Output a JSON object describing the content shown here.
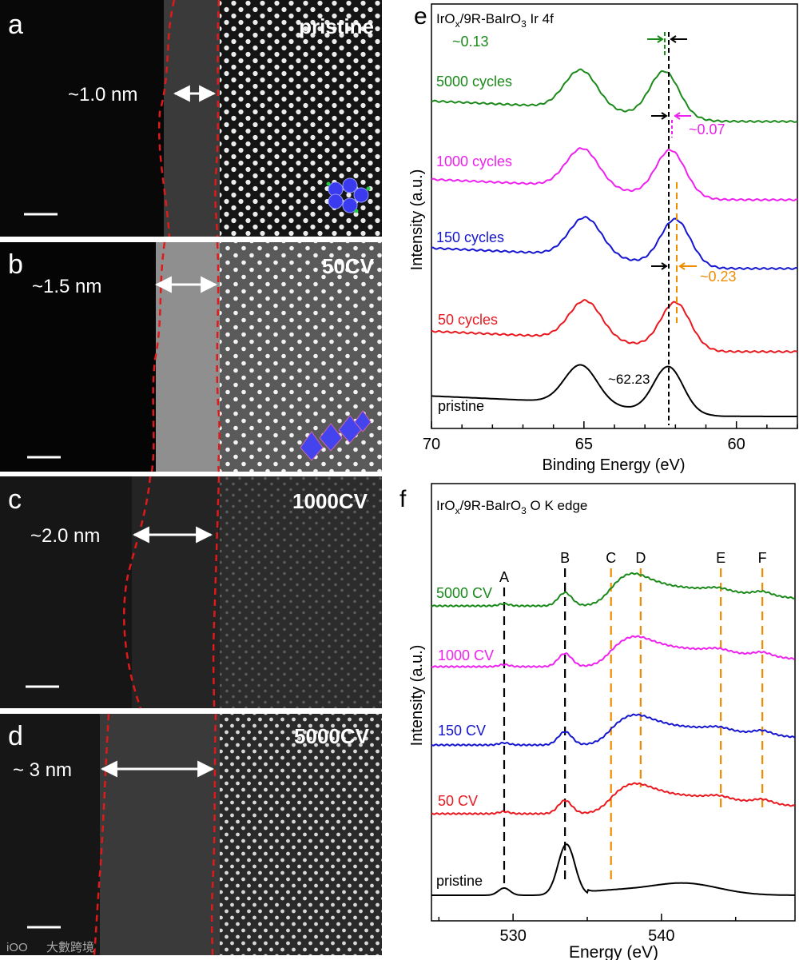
{
  "figure": {
    "watermark": "大數跨境",
    "watermark_logo": "iOO"
  },
  "tem_panels": [
    {
      "letter": "a",
      "condition": "pristine",
      "thickness": "~1.0 nm"
    },
    {
      "letter": "b",
      "condition": "50CV",
      "thickness": "~1.5 nm"
    },
    {
      "letter": "c",
      "condition": "1000CV",
      "thickness": "~2.0 nm"
    },
    {
      "letter": "d",
      "condition": "5000CV",
      "thickness": "~ 3 nm"
    }
  ],
  "chart_data": [
    {
      "panel": "e",
      "type": "line",
      "title_main": "IrO",
      "title_sub1": "x",
      "title_mid": "/9R-BaIrO",
      "title_sub2": "3",
      "title_end": " Ir 4f",
      "xlabel": "Binding Energy (eV)",
      "ylabel": "Intensity (a.u.)",
      "xlim": [
        70,
        58
      ],
      "xticks": [
        70,
        65,
        60
      ],
      "series": [
        {
          "name": "pristine",
          "color": "#000000",
          "peaks": [
            65.1,
            62.23
          ]
        },
        {
          "name": "50 cycles",
          "color": "#e8191f",
          "peaks": [
            64.95,
            62.0
          ]
        },
        {
          "name": "150 cycles",
          "color": "#1515d0",
          "peaks": [
            64.95,
            62.0
          ]
        },
        {
          "name": "1000 cycles",
          "color": "#ee22ee",
          "peaks": [
            65.05,
            62.16
          ]
        },
        {
          "name": "5000 cycles",
          "color": "#1a8a1a",
          "peaks": [
            65.1,
            62.36
          ]
        }
      ],
      "annotations": [
        {
          "text": "~62.23",
          "x": 62.23
        },
        {
          "text": "~0.23",
          "color": "#f08c00"
        },
        {
          "text": "~0.07",
          "color": "#ee22ee"
        },
        {
          "text": "~0.13",
          "color": "#1a8a1a"
        }
      ]
    },
    {
      "panel": "f",
      "type": "line",
      "title_main": "IrO",
      "title_sub1": "x",
      "title_mid": "/9R-BaIrO",
      "title_sub2": "3",
      "title_end": " O K edge",
      "xlabel": "Energy (eV)",
      "ylabel": "Intensity (a.u.)",
      "xlim": [
        524.5,
        549
      ],
      "xticks": [
        530,
        540
      ],
      "series": [
        {
          "name": "pristine",
          "color": "#000000"
        },
        {
          "name": "50 CV",
          "color": "#e8191f"
        },
        {
          "name": "150 CV",
          "color": "#1515d0"
        },
        {
          "name": "1000 CV",
          "color": "#ee22ee"
        },
        {
          "name": "5000 CV",
          "color": "#1a8a1a"
        }
      ],
      "peak_markers": [
        {
          "label": "A",
          "x": 529.4,
          "color": "#000000"
        },
        {
          "label": "B",
          "x": 533.5,
          "color": "#000000"
        },
        {
          "label": "C",
          "x": 536.6,
          "color": "#f08c00"
        },
        {
          "label": "D",
          "x": 538.6,
          "color": "#f08c00"
        },
        {
          "label": "E",
          "x": 544.0,
          "color": "#f08c00"
        },
        {
          "label": "F",
          "x": 546.8,
          "color": "#f08c00"
        }
      ]
    }
  ]
}
